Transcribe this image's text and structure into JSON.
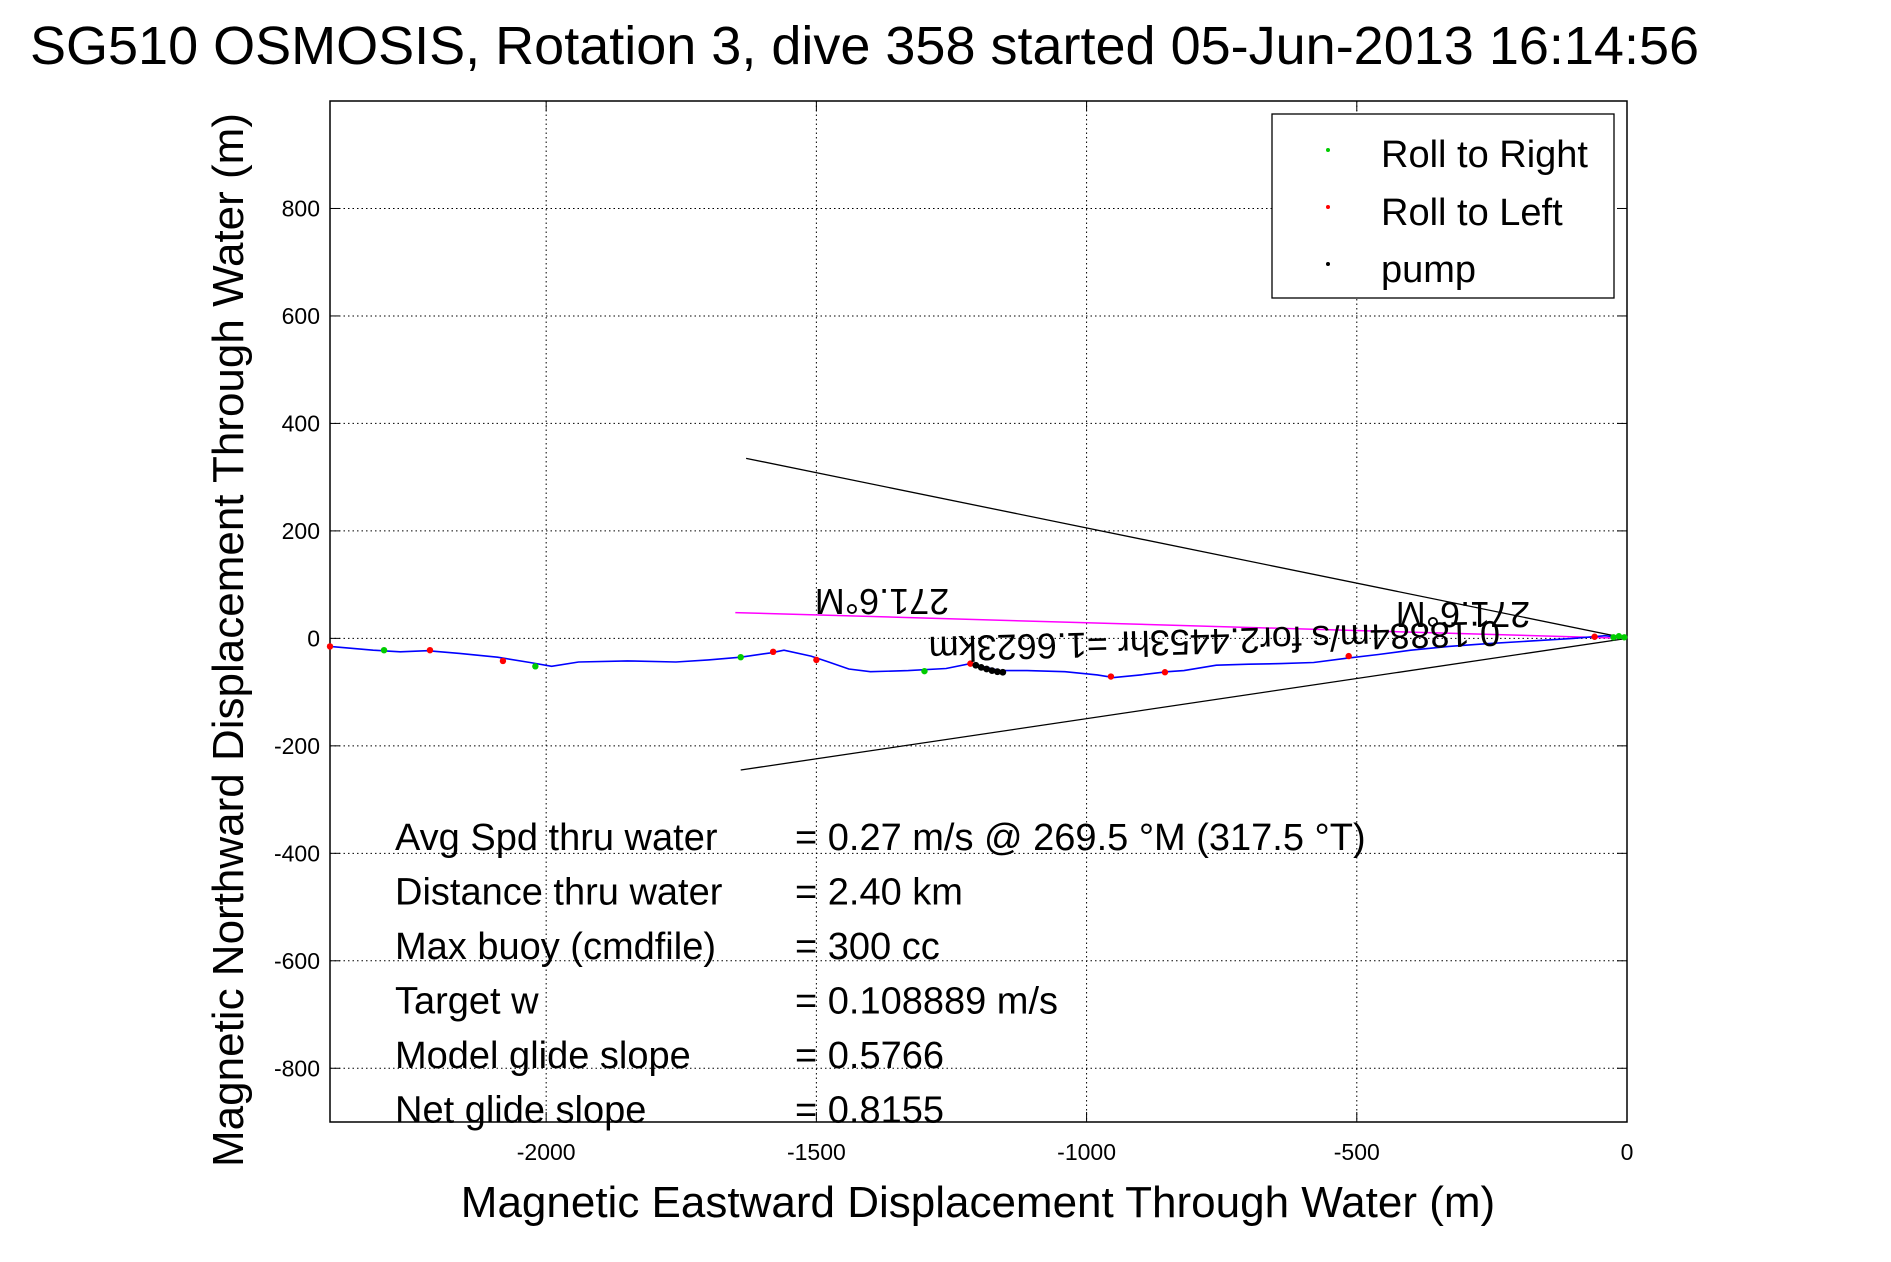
{
  "chart_data": {
    "type": "line",
    "title": "SG510 OSMOSIS, Rotation 3, dive 358 started 05-Jun-2013 16:14:56",
    "xlabel": "Magnetic Eastward Displacement Through Water (m)",
    "ylabel": "Magnetic Northward Displacement Through Water (m)",
    "xlim": [
      -2400,
      0
    ],
    "ylim": [
      -900,
      1000
    ],
    "xticks": [
      -2000,
      -1500,
      -1000,
      -500,
      0
    ],
    "yticks": [
      -800,
      -600,
      -400,
      -200,
      0,
      200,
      400,
      600,
      800
    ],
    "grid": true,
    "legend_placement": "top-right",
    "legend": [
      {
        "label": "Roll to Right",
        "color": "#00cc00"
      },
      {
        "label": "Roll to Left",
        "color": "#ff0000"
      },
      {
        "label": "pump",
        "color": "#000000"
      }
    ],
    "track": {
      "color": "#0000ff",
      "x": [
        -2400,
        -2320,
        -2270,
        -2220,
        -2160,
        -2090,
        -2030,
        -1990,
        -1940,
        -1850,
        -1760,
        -1700,
        -1640,
        -1585,
        -1560,
        -1510,
        -1480,
        -1440,
        -1400,
        -1330,
        -1260,
        -1215,
        -1190,
        -1160,
        -1110,
        -1040,
        -980,
        -950,
        -900,
        -850,
        -820,
        -760,
        -700,
        -640,
        -580,
        -520,
        -460,
        -400,
        -330,
        -260,
        -180,
        -100,
        -40,
        0
      ],
      "y": [
        -15,
        -22,
        -25,
        -23,
        -28,
        -35,
        -45,
        -52,
        -44,
        -42,
        -44,
        -40,
        -35,
        -27,
        -22,
        -33,
        -43,
        -57,
        -62,
        -60,
        -56,
        -47,
        -53,
        -60,
        -60,
        -62,
        -68,
        -73,
        -68,
        -62,
        -60,
        -50,
        -48,
        -47,
        -45,
        -37,
        -30,
        -22,
        -15,
        -10,
        -5,
        0,
        5,
        0
      ]
    },
    "roll_right": {
      "color": "#00cc00",
      "x": [
        -2300,
        -2020,
        -1640,
        -1300,
        -25,
        -15,
        -5
      ],
      "y": [
        -22,
        -52,
        -35,
        -61,
        2,
        4,
        2
      ]
    },
    "roll_left": {
      "color": "#ff0000",
      "x": [
        -2400,
        -2215,
        -2080,
        -1580,
        -1500,
        -1215,
        -955,
        -855,
        -515,
        -60
      ],
      "y": [
        -15,
        -22,
        -42,
        -25,
        -40,
        -47,
        -71,
        -63,
        -33,
        3
      ]
    },
    "pump": {
      "color": "#000000",
      "x": [
        -1205,
        -1195,
        -1185,
        -1175,
        -1165,
        -1155
      ],
      "y": [
        -50,
        -54,
        -57,
        -60,
        -62,
        -63
      ]
    },
    "magenta_line": {
      "color": "#ff00ff",
      "x": [
        -1650,
        0
      ],
      "y": [
        48,
        0
      ]
    },
    "cone_lines": {
      "color": "#000000",
      "upper": {
        "x": [
          -1630,
          0
        ],
        "y": [
          335,
          0
        ]
      },
      "lower": {
        "x": [
          -1640,
          0
        ],
        "y": [
          -245,
          0
        ]
      }
    },
    "annotations": {
      "heading_left": "271.6°M",
      "heading_right": "271.6°M",
      "current": "0.18884m/s for2.4453hr =1.6623km"
    },
    "stats": [
      {
        "label": "Avg Spd thru water",
        "value": "=  0.27 m/s @ 269.5 °M (317.5 °T)"
      },
      {
        "label": "Distance thru water",
        "value": "=  2.40 km"
      },
      {
        "label": "Max buoy (cmdfile)",
        "value": "= 300 cc"
      },
      {
        "label": "Target w",
        "value": "= 0.108889 m/s"
      },
      {
        "label": "Model glide slope",
        "value": "= 0.5766"
      },
      {
        "label": "Net glide slope",
        "value": "= 0.8155"
      }
    ]
  }
}
